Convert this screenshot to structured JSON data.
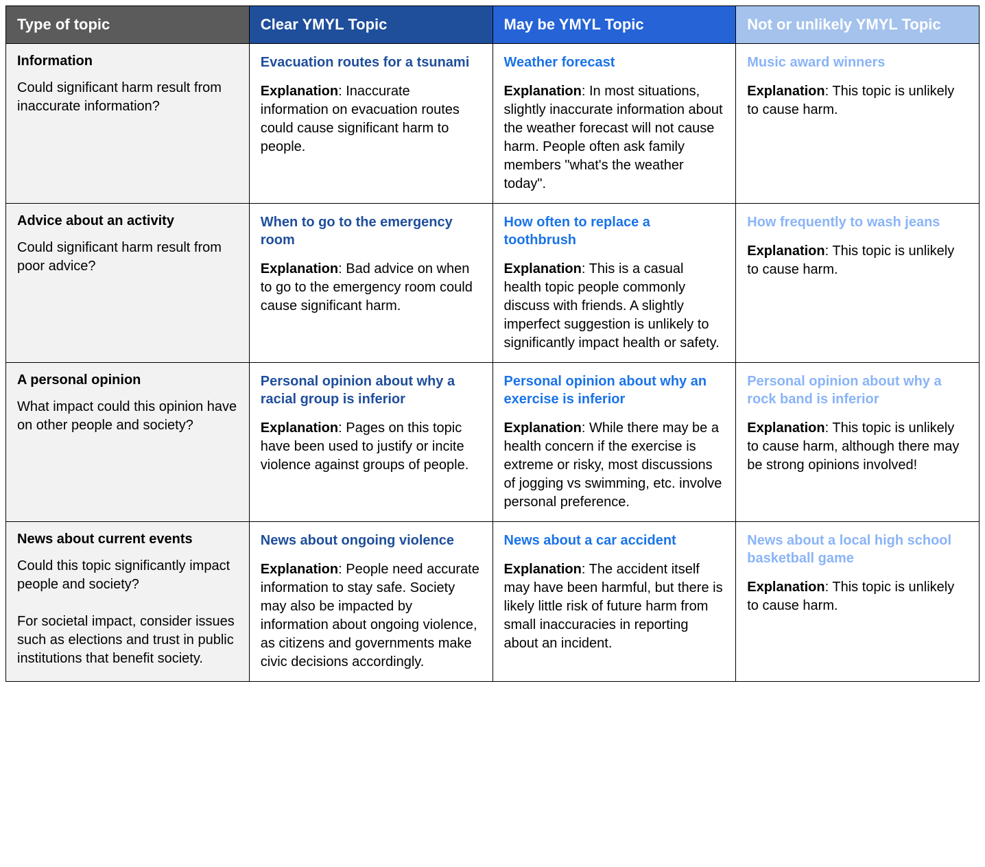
{
  "header_colors": {
    "col0": "#5b5b5b",
    "col1": "#1f4e9b",
    "col2": "#2563d6",
    "col3": "#a4c2ec"
  },
  "title_colors": {
    "clear": "#1f4e9b",
    "maybe": "#1a73e8",
    "not": "#8ab4f8"
  },
  "headers": {
    "col0": "Type of topic",
    "col1": "Clear YMYL Topic",
    "col2": "May be YMYL Topic",
    "col3": "Not or unlikely YMYL Topic"
  },
  "rows": [
    {
      "title": "Information",
      "desc": "Could significant harm result from inaccurate information?",
      "clear": {
        "title": "Evacuation routes for a tsunami",
        "exp": "Inaccurate information on evacuation routes could cause significant harm to people."
      },
      "maybe": {
        "title": "Weather forecast",
        "exp": "In most situations, slightly inaccurate information about the weather forecast will not cause harm. People often ask family members \"what's the weather today\"."
      },
      "not": {
        "title": "Music award winners",
        "exp": "This topic is unlikely to cause harm."
      }
    },
    {
      "title": "Advice about an activity",
      "desc": "Could significant harm result from poor advice?",
      "clear": {
        "title": "When to go to the emergency room",
        "exp": "Bad advice on when to go to the emergency room could cause significant harm."
      },
      "maybe": {
        "title": "How often to replace a toothbrush",
        "exp": "This is a casual health topic people commonly discuss with friends.  A slightly imperfect suggestion is unlikely to significantly impact health or safety."
      },
      "not": {
        "title": "How frequently to wash jeans",
        "exp": "This topic is unlikely to cause harm."
      }
    },
    {
      "title": "A personal opinion",
      "desc": "What impact could this opinion have on other people and society?",
      "clear": {
        "title": "Personal opinion about why a racial group is inferior",
        "exp": "Pages on this topic have been used to justify or incite violence against groups of people."
      },
      "maybe": {
        "title": "Personal opinion about why an exercise is inferior",
        "exp": "While there may be a health concern if the exercise is extreme or risky, most discussions of jogging vs swimming, etc. involve personal preference."
      },
      "not": {
        "title": "Personal opinion about why a rock band is inferior",
        "exp": "This topic is unlikely to cause harm, although there may be strong opinions involved!"
      }
    },
    {
      "title": "News about current events",
      "desc": "Could this topic significantly impact people and society?\n\nFor societal impact, consider issues such as elections and trust in public institutions that benefit society.",
      "clear": {
        "title": "News about ongoing violence",
        "exp": "People need accurate information to stay safe. Society may also be impacted by information about ongoing violence, as citizens and governments make civic decisions accordingly."
      },
      "maybe": {
        "title": "News about a car accident",
        "exp": "The accident itself may have been harmful, but there is likely little risk of future harm from small inaccuracies in reporting about an incident."
      },
      "not": {
        "title": "News about a local high school basketball game",
        "exp": "This topic is unlikely to cause harm."
      }
    }
  ],
  "exp_label": "Explanation"
}
